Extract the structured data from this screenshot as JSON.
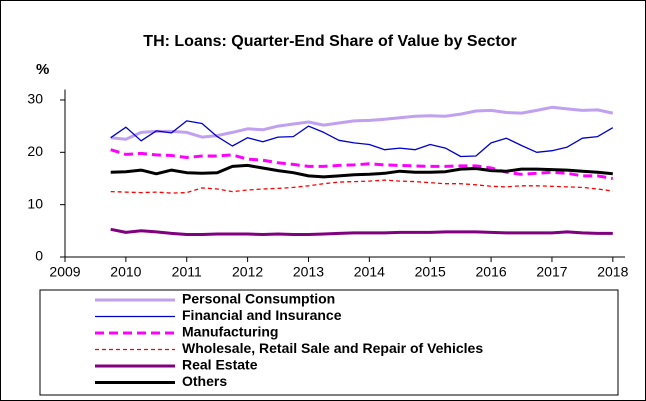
{
  "chart_data": {
    "type": "line",
    "title": "TH: Loans: Quarter-End Share of Value by Sector",
    "y_label": "%",
    "x": [
      2009.75,
      2010.0,
      2010.25,
      2010.5,
      2010.75,
      2011.0,
      2011.25,
      2011.5,
      2011.75,
      2012.0,
      2012.25,
      2012.5,
      2012.75,
      2013.0,
      2013.25,
      2013.5,
      2013.75,
      2014.0,
      2014.25,
      2014.5,
      2014.75,
      2015.0,
      2015.25,
      2015.5,
      2015.75,
      2016.0,
      2016.25,
      2016.5,
      2016.75,
      2017.0,
      2017.25,
      2017.5,
      2017.75,
      2018.0
    ],
    "xlim": [
      2009,
      2018.2
    ],
    "xticks": [
      2009,
      2010,
      2011,
      2012,
      2013,
      2014,
      2015,
      2016,
      2017,
      2018
    ],
    "ylim": [
      0,
      32
    ],
    "yticks": [
      0,
      10,
      20,
      30
    ],
    "legend": "bottom",
    "series": [
      {
        "name": "Personal Consumption",
        "color": "#c0a0f0",
        "values": [
          22.8,
          22.5,
          23.8,
          24.0,
          24.0,
          23.8,
          22.9,
          23.2,
          23.8,
          24.5,
          24.3,
          25.0,
          25.4,
          25.8,
          25.2,
          25.6,
          26.0,
          26.1,
          26.3,
          26.6,
          26.9,
          27.0,
          26.9,
          27.3,
          27.9,
          28.0,
          27.6,
          27.5,
          28.0,
          28.6,
          28.3,
          28.0,
          28.1,
          27.5
        ]
      },
      {
        "name": "Financial and Insurance",
        "color": "#0000cc",
        "values": [
          22.8,
          24.8,
          22.2,
          24.1,
          23.7,
          26.0,
          25.5,
          23.0,
          21.2,
          22.8,
          22.0,
          22.9,
          23.0,
          25.0,
          23.8,
          22.3,
          21.8,
          21.5,
          20.5,
          20.8,
          20.5,
          21.5,
          20.8,
          19.2,
          19.3,
          21.8,
          22.7,
          21.3,
          20.0,
          20.3,
          21.0,
          22.7,
          23.0,
          24.7
        ]
      },
      {
        "name": "Manufacturing",
        "color": "#ff00ff",
        "values": [
          20.5,
          19.6,
          19.8,
          19.5,
          19.4,
          19.0,
          19.3,
          19.3,
          19.5,
          18.7,
          18.5,
          18.0,
          17.7,
          17.3,
          17.3,
          17.5,
          17.6,
          17.8,
          17.6,
          17.5,
          17.4,
          17.3,
          17.3,
          17.4,
          17.4,
          17.0,
          16.2,
          15.8,
          16.0,
          16.2,
          16.0,
          15.5,
          15.5,
          15.0
        ]
      },
      {
        "name": "Wholesale, Retail Sale and Repair of Vehicles",
        "color": "#ff0000",
        "values": [
          12.5,
          12.4,
          12.3,
          12.4,
          12.2,
          12.3,
          13.2,
          13.0,
          12.5,
          12.8,
          13.0,
          13.1,
          13.3,
          13.6,
          14.0,
          14.3,
          14.4,
          14.5,
          14.7,
          14.5,
          14.4,
          14.2,
          14.0,
          14.0,
          13.8,
          13.5,
          13.4,
          13.6,
          13.6,
          13.5,
          13.4,
          13.3,
          13.0,
          12.6
        ]
      },
      {
        "name": "Real Estate",
        "color": "#800080",
        "values": [
          5.3,
          4.7,
          5.0,
          4.8,
          4.5,
          4.3,
          4.3,
          4.4,
          4.4,
          4.4,
          4.3,
          4.4,
          4.3,
          4.3,
          4.4,
          4.5,
          4.6,
          4.6,
          4.6,
          4.7,
          4.7,
          4.7,
          4.8,
          4.8,
          4.8,
          4.7,
          4.6,
          4.6,
          4.6,
          4.6,
          4.8,
          4.6,
          4.5,
          4.5
        ]
      },
      {
        "name": "Others",
        "color": "#000000",
        "values": [
          16.2,
          16.3,
          16.6,
          15.9,
          16.6,
          16.1,
          16.0,
          16.1,
          17.3,
          17.5,
          17.0,
          16.5,
          16.1,
          15.5,
          15.3,
          15.5,
          15.7,
          15.8,
          16.0,
          16.4,
          16.2,
          16.2,
          16.3,
          16.8,
          16.9,
          16.5,
          16.4,
          16.8,
          16.8,
          16.7,
          16.6,
          16.4,
          16.2,
          15.9
        ]
      }
    ]
  }
}
